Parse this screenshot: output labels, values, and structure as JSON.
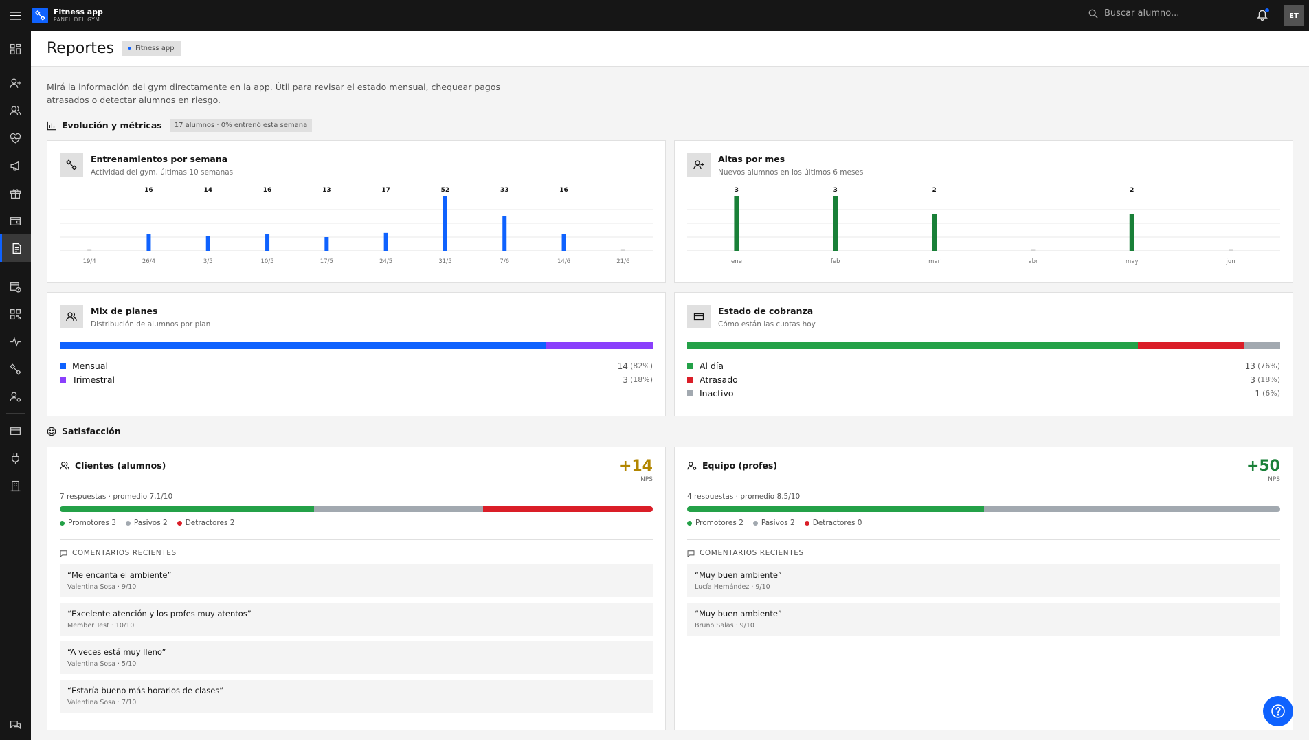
{
  "app": {
    "title": "Fitness app",
    "subtitle": "PANEL DEL GYM",
    "avatar": "ET",
    "search_placeholder": "Buscar alumno..."
  },
  "sidebar": {
    "items": [
      {
        "icon": "dashboard-icon"
      },
      {
        "icon": "add-user-icon"
      },
      {
        "icon": "users-icon"
      },
      {
        "icon": "heart-icon"
      },
      {
        "icon": "megaphone-icon"
      },
      {
        "icon": "gift-icon"
      },
      {
        "icon": "wallet-icon"
      },
      {
        "icon": "report-icon",
        "active": true
      },
      {
        "icon": "calendar-clock-icon"
      },
      {
        "icon": "qr-code-icon"
      },
      {
        "icon": "activity-icon"
      },
      {
        "icon": "dumbbell-icon"
      },
      {
        "icon": "user-settings-icon"
      },
      {
        "icon": "card-icon"
      },
      {
        "icon": "plug-icon"
      },
      {
        "icon": "building-icon"
      },
      {
        "icon": "chat-icon"
      }
    ]
  },
  "page": {
    "title": "Reportes",
    "tag": "Fitness app",
    "intro": "Mirá la información del gym directamente en la app. Útil para revisar el estado mensual, chequear pagos atrasados o detectar alumnos en riesgo."
  },
  "metrics_section": {
    "title": "Evolución y métricas",
    "tag": "17 alumnos · 0% entrenó esta semana"
  },
  "satisfaction_section": {
    "title": "Satisfacción"
  },
  "cards": {
    "trainings": {
      "title": "Entrenamientos por semana",
      "subtitle": "Actividad del gym, últimas 10 semanas"
    },
    "signups": {
      "title": "Altas por mes",
      "subtitle": "Nuevos alumnos en los últimos 6 meses"
    },
    "plans": {
      "title": "Mix de planes",
      "subtitle": "Distribución de alumnos por plan",
      "items": [
        {
          "label": "Mensual",
          "value": "14",
          "pct": "(82%)",
          "share": 82,
          "color": "#0f62fe"
        },
        {
          "label": "Trimestral",
          "value": "3",
          "pct": "(18%)",
          "share": 18,
          "color": "#8a3ffc"
        }
      ]
    },
    "billing": {
      "title": "Estado de cobranza",
      "subtitle": "Cómo están las cuotas hoy",
      "items": [
        {
          "label": "Al día",
          "value": "13",
          "pct": "(76%)",
          "share": 76,
          "color": "#24a148"
        },
        {
          "label": "Atrasado",
          "value": "3",
          "pct": "(18%)",
          "share": 18,
          "color": "#da1e28"
        },
        {
          "label": "Inactivo",
          "value": "1",
          "pct": "(6%)",
          "share": 6,
          "color": "#a2a9b0"
        }
      ]
    }
  },
  "chart_data": [
    {
      "type": "bar",
      "title": "Entrenamientos por semana",
      "categories": [
        "19/4",
        "26/4",
        "3/5",
        "10/5",
        "17/5",
        "24/5",
        "31/5",
        "7/6",
        "14/6",
        "21/6"
      ],
      "values": [
        0,
        16,
        14,
        16,
        13,
        17,
        52,
        33,
        16,
        0
      ],
      "labels": [
        "",
        "16",
        "14",
        "16",
        "13",
        "17",
        "52",
        "33",
        "16",
        ""
      ],
      "color": "#0f62fe",
      "ylim": [
        0,
        52
      ],
      "grid": true
    },
    {
      "type": "bar",
      "title": "Altas por mes",
      "categories": [
        "ene",
        "feb",
        "mar",
        "abr",
        "may",
        "jun"
      ],
      "values": [
        3,
        3,
        2,
        0,
        2,
        0
      ],
      "labels": [
        "3",
        "3",
        "2",
        "",
        "2",
        ""
      ],
      "color": "#198038",
      "ylim": [
        0,
        3
      ],
      "grid": true
    }
  ],
  "nps": {
    "clients": {
      "title": "Clientes (alumnos)",
      "score": "+14",
      "score_color": "#b28600",
      "label": "NPS",
      "meta": "7 respuestas · promedio 7.1/10",
      "segments": [
        {
          "share": 3,
          "color": "#24a148"
        },
        {
          "share": 2,
          "color": "#a2a9b0"
        },
        {
          "share": 2,
          "color": "#da1e28"
        }
      ],
      "legend": [
        {
          "text": "Promotores 3",
          "color": "#24a148"
        },
        {
          "text": "Pasivos 2",
          "color": "#a2a9b0"
        },
        {
          "text": "Detractores 2",
          "color": "#da1e28"
        }
      ],
      "comments_title": "COMENTARIOS RECIENTES",
      "comments": [
        {
          "quote": "“Me encanta el ambiente”",
          "author": "Valentina Sosa · 9/10"
        },
        {
          "quote": "“Excelente atención y los profes muy atentos”",
          "author": "Member Test · 10/10"
        },
        {
          "quote": "“A veces está muy lleno”",
          "author": "Valentina Sosa · 5/10"
        },
        {
          "quote": "“Estaría bueno más horarios de clases”",
          "author": "Valentina Sosa · 7/10"
        }
      ]
    },
    "team": {
      "title": "Equipo (profes)",
      "score": "+50",
      "score_color": "#198038",
      "label": "NPS",
      "meta": "4 respuestas · promedio 8.5/10",
      "segments": [
        {
          "share": 2,
          "color": "#24a148"
        },
        {
          "share": 2,
          "color": "#a2a9b0"
        }
      ],
      "legend": [
        {
          "text": "Promotores 2",
          "color": "#24a148"
        },
        {
          "text": "Pasivos 2",
          "color": "#a2a9b0"
        },
        {
          "text": "Detractores 0",
          "color": "#da1e28"
        }
      ],
      "comments_title": "COMENTARIOS RECIENTES",
      "comments": [
        {
          "quote": "“Muy buen ambiente”",
          "author": "Lucía Hernández · 9/10"
        },
        {
          "quote": "“Muy buen ambiente”",
          "author": "Bruno Salas · 9/10"
        }
      ]
    }
  }
}
